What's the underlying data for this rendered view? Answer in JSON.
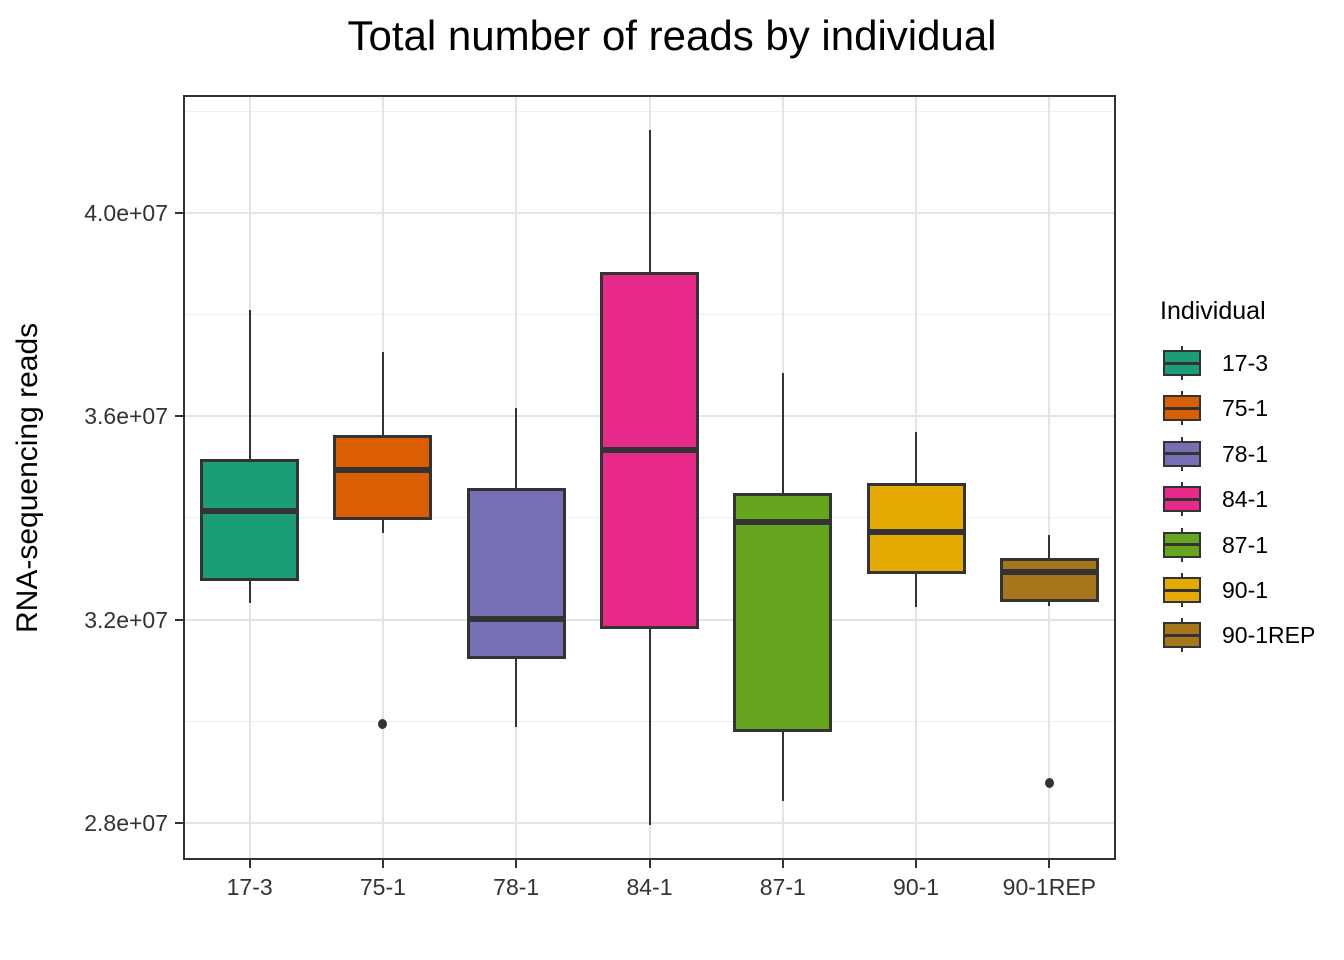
{
  "chart_data": {
    "type": "boxplot",
    "title": "Total number of reads by individual",
    "ylabel": "RNA-sequencing reads",
    "xlabel": "",
    "legend_title": "Individual",
    "legend_position": "right",
    "y_axis": {
      "ticks": [
        28000000,
        32000000,
        36000000,
        40000000
      ],
      "tick_labels": [
        "2.8e+07",
        "3.2e+07",
        "3.6e+07",
        "4.0e+07"
      ],
      "minor_ticks": [
        30000000,
        34000000,
        38000000,
        42000000
      ],
      "domain": [
        27270000,
        42320000
      ],
      "grid": true
    },
    "categories": [
      "17-3",
      "75-1",
      "78-1",
      "84-1",
      "87-1",
      "90-1",
      "90-1REP"
    ],
    "series": [
      {
        "name": "17-3",
        "color": "#1B9E77",
        "whisker_low": 32330000,
        "q1": 32760000,
        "median": 34140000,
        "q3": 35160000,
        "whisker_high": 38090000,
        "outliers": []
      },
      {
        "name": "75-1",
        "color": "#D95F02",
        "whisker_low": 33700000,
        "q1": 33960000,
        "median": 34940000,
        "q3": 35630000,
        "whisker_high": 37270000,
        "outliers": [
          29950000
        ]
      },
      {
        "name": "78-1",
        "color": "#7570B3",
        "whisker_low": 29890000,
        "q1": 31230000,
        "median": 32010000,
        "q3": 34590000,
        "whisker_high": 36160000,
        "outliers": []
      },
      {
        "name": "84-1",
        "color": "#E7298A",
        "whisker_low": 27960000,
        "q1": 31820000,
        "median": 35340000,
        "q3": 38840000,
        "whisker_high": 41630000,
        "outliers": []
      },
      {
        "name": "87-1",
        "color": "#66A61E",
        "whisker_low": 28430000,
        "q1": 29790000,
        "median": 33920000,
        "q3": 34490000,
        "whisker_high": 36850000,
        "outliers": []
      },
      {
        "name": "90-1",
        "color": "#E6AB02",
        "whisker_low": 32250000,
        "q1": 32900000,
        "median": 33720000,
        "q3": 34690000,
        "whisker_high": 35690000,
        "outliers": []
      },
      {
        "name": "90-1REP",
        "color": "#A6761D",
        "whisker_low": 32270000,
        "q1": 32350000,
        "median": 32940000,
        "q3": 33210000,
        "whisker_high": 33670000,
        "outliers": [
          28790000
        ]
      }
    ],
    "style": {
      "box_border_color": "#333333",
      "median_color": "#333333",
      "whisker_color": "#333333",
      "outlier_color": "#333333",
      "grid_major_color": "#e4e4e4",
      "grid_minor_color": "#efefef",
      "panel_border_color": "#333333",
      "background": "#ffffff"
    }
  }
}
